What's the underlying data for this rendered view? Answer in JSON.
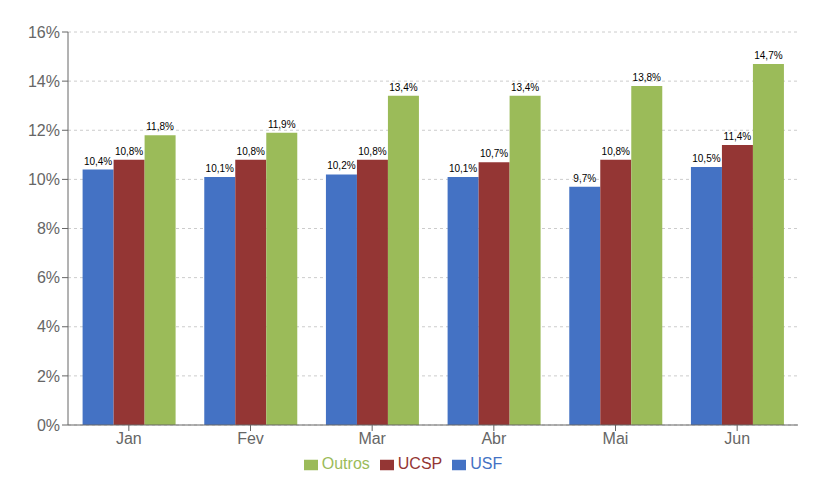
{
  "chart_data": {
    "type": "bar",
    "categories": [
      "Jan",
      "Fev",
      "Mar",
      "Abr",
      "Mai",
      "Jun"
    ],
    "series": [
      {
        "name": "USF",
        "color": "#4472C4",
        "values": [
          10.4,
          10.1,
          10.2,
          10.1,
          9.7,
          10.5
        ],
        "value_labels": [
          "10,4%",
          "10,1%",
          "10,2%",
          "10,1%",
          "9,7%",
          "10,5%"
        ]
      },
      {
        "name": "UCSP",
        "color": "#943634",
        "values": [
          10.8,
          10.8,
          10.8,
          10.7,
          10.8,
          11.4
        ],
        "value_labels": [
          "10,8%",
          "10,8%",
          "10,8%",
          "10,7%",
          "10,8%",
          "11,4%"
        ]
      },
      {
        "name": "Outros",
        "color": "#9BBB59",
        "values": [
          11.8,
          11.9,
          13.4,
          13.4,
          13.8,
          14.7
        ],
        "value_labels": [
          "11,8%",
          "11,9%",
          "13,4%",
          "13,4%",
          "13,8%",
          "14,7%"
        ]
      }
    ],
    "ylim": [
      0,
      16
    ],
    "yticks": [
      {
        "value": 0,
        "label": "0%"
      },
      {
        "value": 2,
        "label": "2%"
      },
      {
        "value": 4,
        "label": "4%"
      },
      {
        "value": 6,
        "label": "6%"
      },
      {
        "value": 8,
        "label": "8%"
      },
      {
        "value": 10,
        "label": "10%"
      },
      {
        "value": 12,
        "label": "12%"
      },
      {
        "value": 14,
        "label": "14%"
      },
      {
        "value": 16,
        "label": "16%"
      }
    ],
    "grid": true,
    "legend": "bottom",
    "data_labels": true
  }
}
